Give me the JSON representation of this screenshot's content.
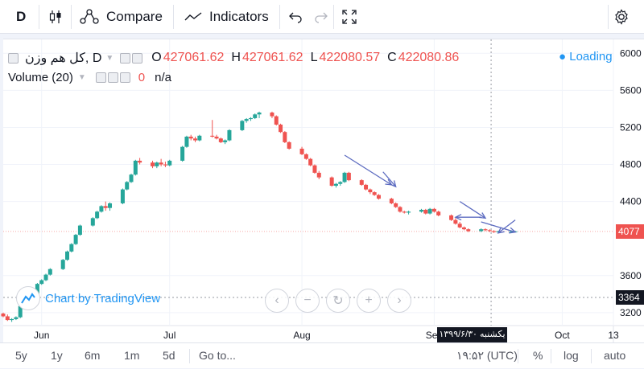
{
  "toolbar": {
    "symbol": "D",
    "compare_label": "Compare",
    "indicators_label": "Indicators"
  },
  "legend": {
    "symbol_name": "کل هم وزن, D",
    "open_key": "O",
    "open_val": "427061.62",
    "high_key": "H",
    "high_val": "427061.62",
    "low_key": "L",
    "low_val": "422080.57",
    "close_key": "C",
    "close_val": "422080.86",
    "loading_text": "Loading",
    "volume_label": "Volume (20)",
    "volume_value": "0",
    "volume_na": "n/a"
  },
  "price_axis": {
    "ticks": [
      "6000",
      "5600",
      "5200",
      "4800",
      "4400",
      "3600",
      "3200"
    ],
    "current_tag": "4077",
    "secondary_tag": "3364",
    "tag_color": "#ef5350",
    "secondary_tag_color": "#131722"
  },
  "time_axis": {
    "ticks": [
      "Jun",
      "Jul",
      "Aug",
      "Sep",
      "Oct",
      "13"
    ],
    "crosshair_date": "یکشنبه ۱۳۹۹/۶/۳۰"
  },
  "watermark": {
    "label": "Chart by TradingView"
  },
  "bottombar": {
    "ranges": [
      "5y",
      "1y",
      "6m",
      "1m",
      "5d"
    ],
    "goto_label": "Go to...",
    "clock": "۱۹:۵۲ (UTC)",
    "percent_label": "%",
    "log_label": "log",
    "auto_label": "auto"
  },
  "colors": {
    "up": "#26a69a",
    "down": "#ef5350",
    "accent": "#2196f3",
    "annotation": "#5c6bc0"
  },
  "chart_data": {
    "type": "candlestick",
    "x": [
      "2020-05-23",
      "2020-05-24",
      "2020-05-25",
      "2020-05-26",
      "2020-05-27",
      "2020-05-30",
      "2020-05-31",
      "2020-06-01",
      "2020-06-02",
      "2020-06-03",
      "2020-06-06",
      "2020-06-07",
      "2020-06-08",
      "2020-06-09",
      "2020-06-10",
      "2020-06-13",
      "2020-06-14",
      "2020-06-15",
      "2020-06-16",
      "2020-06-17",
      "2020-06-20",
      "2020-06-21",
      "2020-06-22",
      "2020-06-23",
      "2020-06-24",
      "2020-06-27",
      "2020-06-28",
      "2020-06-29",
      "2020-06-30",
      "2020-07-01",
      "2020-07-04",
      "2020-07-05",
      "2020-07-06",
      "2020-07-07",
      "2020-07-08",
      "2020-07-11",
      "2020-07-12",
      "2020-07-13",
      "2020-07-14",
      "2020-07-15",
      "2020-07-18",
      "2020-07-19",
      "2020-07-20",
      "2020-07-21",
      "2020-07-22",
      "2020-07-25",
      "2020-07-26",
      "2020-07-27",
      "2020-07-28",
      "2020-07-29",
      "2020-08-01",
      "2020-08-02",
      "2020-08-03",
      "2020-08-04",
      "2020-08-05",
      "2020-08-08",
      "2020-08-09",
      "2020-08-10",
      "2020-08-11",
      "2020-08-12",
      "2020-08-15",
      "2020-08-16",
      "2020-08-17",
      "2020-08-18",
      "2020-08-19",
      "2020-08-22",
      "2020-08-23",
      "2020-08-24",
      "2020-08-25",
      "2020-08-26",
      "2020-08-29",
      "2020-08-30",
      "2020-08-31",
      "2020-09-01",
      "2020-09-02",
      "2020-09-05",
      "2020-09-06",
      "2020-09-07",
      "2020-09-08",
      "2020-09-09",
      "2020-09-12",
      "2020-09-13",
      "2020-09-14",
      "2020-09-15",
      "2020-09-16",
      "2020-09-19",
      "2020-09-20"
    ],
    "ohlc": [
      [
        3190,
        3200,
        3150,
        3160
      ],
      [
        3160,
        3180,
        3110,
        3120
      ],
      [
        3120,
        3140,
        3100,
        3130
      ],
      [
        3130,
        3160,
        3120,
        3150
      ],
      [
        3150,
        3280,
        3140,
        3270
      ],
      [
        3270,
        3400,
        3260,
        3390
      ],
      [
        3390,
        3520,
        3380,
        3510
      ],
      [
        3510,
        3560,
        3500,
        3550
      ],
      [
        3550,
        3620,
        3540,
        3610
      ],
      [
        3610,
        3680,
        3600,
        3670
      ],
      [
        3670,
        3780,
        3660,
        3770
      ],
      [
        3770,
        3870,
        3760,
        3860
      ],
      [
        3860,
        3950,
        3850,
        3940
      ],
      [
        3940,
        4050,
        3930,
        4040
      ],
      [
        4040,
        4150,
        4030,
        4140
      ],
      [
        4140,
        4230,
        4130,
        4220
      ],
      [
        4220,
        4300,
        4210,
        4290
      ],
      [
        4290,
        4360,
        4280,
        4350
      ],
      [
        4350,
        4400,
        4300,
        4330
      ],
      [
        4330,
        4390,
        4300,
        4380
      ],
      [
        4380,
        4540,
        4370,
        4530
      ],
      [
        4530,
        4620,
        4520,
        4610
      ],
      [
        4610,
        4700,
        4600,
        4690
      ],
      [
        4690,
        4850,
        4680,
        4840
      ],
      [
        4840,
        4870,
        4800,
        4820
      ],
      [
        4820,
        4840,
        4760,
        4780
      ],
      [
        4780,
        4830,
        4760,
        4820
      ],
      [
        4820,
        4860,
        4780,
        4800
      ],
      [
        4800,
        4830,
        4770,
        4790
      ],
      [
        4790,
        4850,
        4780,
        4840
      ],
      [
        4840,
        5000,
        4830,
        4990
      ],
      [
        4990,
        5110,
        4980,
        5100
      ],
      [
        5100,
        5120,
        5060,
        5080
      ],
      [
        5080,
        5100,
        5040,
        5060
      ],
      [
        5060,
        5120,
        5050,
        5110
      ],
      [
        5110,
        5280,
        5090,
        5100
      ],
      [
        5100,
        5120,
        5070,
        5080
      ],
      [
        5080,
        5090,
        5030,
        5040
      ],
      [
        5040,
        5070,
        5020,
        5060
      ],
      [
        5060,
        5180,
        5050,
        5170
      ],
      [
        5170,
        5280,
        5160,
        5270
      ],
      [
        5270,
        5300,
        5250,
        5290
      ],
      [
        5290,
        5310,
        5270,
        5300
      ],
      [
        5300,
        5350,
        5290,
        5340
      ],
      [
        5340,
        5370,
        5300,
        5360
      ],
      [
        5360,
        5370,
        5300,
        5320
      ],
      [
        5320,
        5330,
        5220,
        5230
      ],
      [
        5230,
        5240,
        5140,
        5150
      ],
      [
        5150,
        5160,
        5030,
        5040
      ],
      [
        5040,
        5050,
        4960,
        4970
      ],
      [
        4970,
        4990,
        4900,
        4910
      ],
      [
        4910,
        4920,
        4850,
        4860
      ],
      [
        4860,
        4870,
        4780,
        4790
      ],
      [
        4790,
        4800,
        4700,
        4710
      ],
      [
        4710,
        4730,
        4640,
        4660
      ],
      [
        4660,
        4670,
        4560,
        4570
      ],
      [
        4570,
        4600,
        4550,
        4590
      ],
      [
        4590,
        4620,
        4570,
        4610
      ],
      [
        4610,
        4720,
        4600,
        4710
      ],
      [
        4710,
        4720,
        4620,
        4630
      ],
      [
        4630,
        4640,
        4570,
        4580
      ],
      [
        4580,
        4590,
        4520,
        4530
      ],
      [
        4530,
        4540,
        4480,
        4500
      ],
      [
        4500,
        4510,
        4460,
        4470
      ],
      [
        4470,
        4480,
        4420,
        4430
      ],
      [
        4430,
        4440,
        4370,
        4380
      ],
      [
        4380,
        4390,
        4330,
        4340
      ],
      [
        4340,
        4350,
        4280,
        4290
      ],
      [
        4290,
        4300,
        4270,
        4280
      ],
      [
        4280,
        4300,
        4260,
        4290
      ],
      [
        4290,
        4320,
        4280,
        4310
      ],
      [
        4310,
        4320,
        4260,
        4270
      ],
      [
        4270,
        4330,
        4260,
        4320
      ],
      [
        4320,
        4330,
        4280,
        4290
      ],
      [
        4290,
        4300,
        4240,
        4250
      ],
      [
        4250,
        4260,
        4190,
        4200
      ],
      [
        4200,
        4220,
        4150,
        4160
      ],
      [
        4160,
        4180,
        4110,
        4120
      ],
      [
        4120,
        4130,
        4090,
        4100
      ],
      [
        4100,
        4110,
        4070,
        4080
      ],
      [
        4080,
        4110,
        4070,
        4100
      ],
      [
        4100,
        4110,
        4080,
        4090
      ],
      [
        4090,
        4100,
        4070,
        4080
      ],
      [
        4080,
        4090,
        4060,
        4070
      ],
      [
        4070,
        4085,
        4060,
        4077
      ],
      [
        4077,
        4090,
        4065,
        4077
      ],
      [
        4077,
        4082,
        4070,
        4077
      ]
    ],
    "ylim": [
      3060,
      6150
    ],
    "xlim": [
      "2020-05-23",
      "2020-10-13"
    ],
    "annotations": [
      "arrow",
      "arrow",
      "arrow",
      "arrow"
    ]
  }
}
